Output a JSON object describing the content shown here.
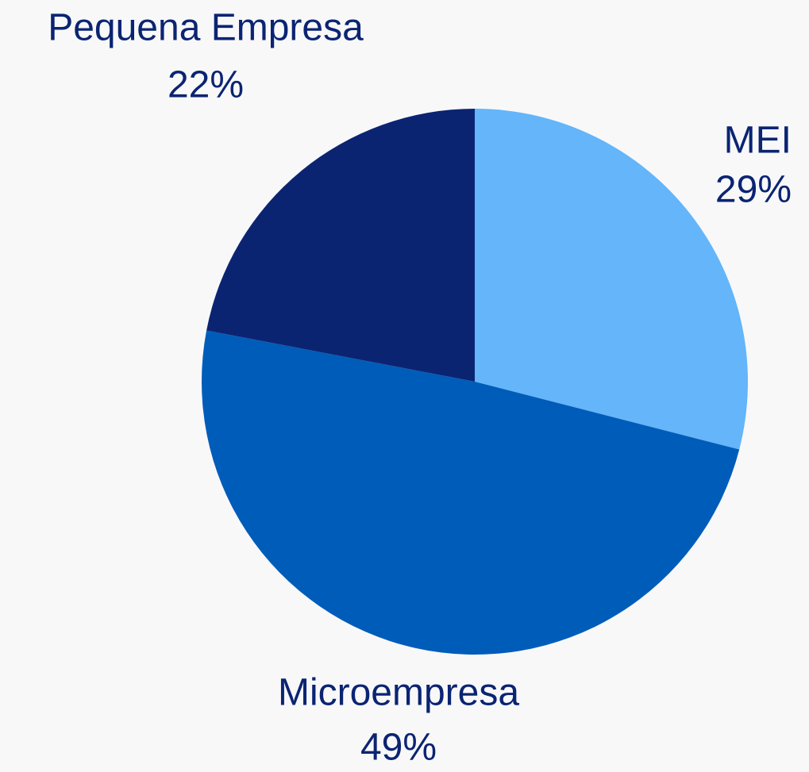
{
  "chart_data": {
    "type": "pie",
    "categories": [
      "MEI",
      "Microempresa",
      "Pequena Empresa"
    ],
    "values": [
      29,
      49,
      22
    ],
    "value_labels": [
      "29%",
      "49%",
      "22%"
    ],
    "colors": [
      "#64b5f9",
      "#005cb9",
      "#0b2472"
    ]
  }
}
